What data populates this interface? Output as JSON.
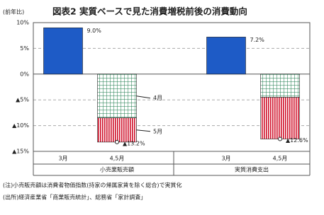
{
  "chart_data": {
    "type": "bar",
    "title": "図表2 実質ベースで見た消費増税前後の消費動向",
    "unit": "(前年比)",
    "categories": [
      "3月",
      "4,5月",
      "3月",
      "4,5月"
    ],
    "groups": [
      "小売業販売額",
      "実質消費支出"
    ],
    "bars": {
      "color": "#1e5bc6",
      "values": [
        9.0,
        null,
        7.2,
        null
      ],
      "value_labels": [
        "9.0%",
        null,
        "7.2%",
        null
      ]
    },
    "series": [
      {
        "name": "4月",
        "color": "#1a7a4a",
        "values": [
          null,
          -8.5,
          null,
          -4.5
        ]
      },
      {
        "name": "5月",
        "color": "#d0102a",
        "values": [
          null,
          -4.7,
          null,
          -8.1
        ]
      }
    ],
    "totals": {
      "values": [
        null,
        -13.2,
        null,
        -12.6
      ],
      "value_labels": [
        null,
        "▲13.2%",
        null,
        "▲12.6%"
      ]
    },
    "ylim": [
      -15,
      10
    ],
    "yticks": [
      {
        "value": 10,
        "label": "10%"
      },
      {
        "value": 5,
        "label": "5%"
      },
      {
        "value": 0,
        "label": "0%"
      },
      {
        "value": -5,
        "label": "▲5%"
      },
      {
        "value": -10,
        "label": "▲10%"
      },
      {
        "value": -15,
        "label": "▲15%"
      }
    ],
    "grid": true,
    "notes": [
      "(注)小売販売額は消費者物価指数(持家の帰属家賃を除く総合)で実質化",
      "(出所)経済産業省「商業販売統計」、総務省「家計調査」"
    ]
  }
}
